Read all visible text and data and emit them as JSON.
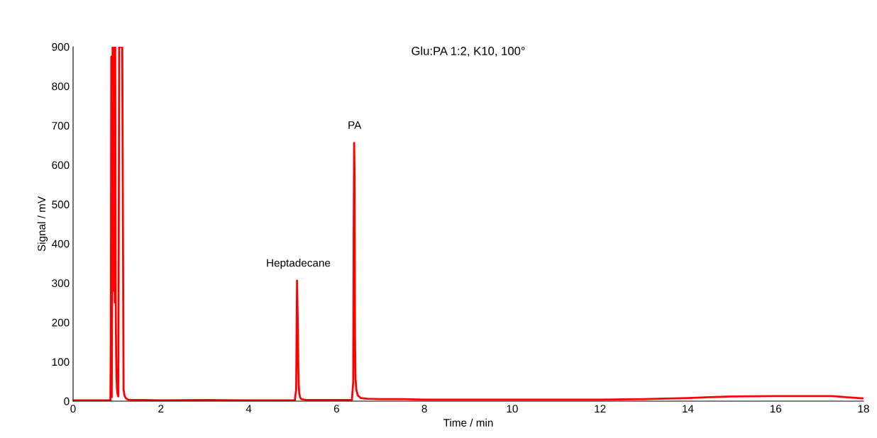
{
  "chart_data": {
    "type": "line",
    "title": "Glu:PA 1:2, K10, 100°",
    "xlabel": "Time / min",
    "ylabel": "Signal / mV",
    "x": [
      0,
      0.5,
      0.85,
      0.86,
      0.87,
      0.88,
      0.89,
      0.9,
      0.91,
      0.92,
      0.93,
      0.94,
      0.95,
      0.96,
      0.97,
      0.98,
      0.99,
      1.0,
      1.01,
      1.02,
      1.03,
      1.05,
      1.08,
      1.12,
      1.15,
      1.17,
      1.18,
      1.19,
      1.2,
      1.22,
      1.25,
      1.35,
      1.6,
      2.0,
      3.0,
      4.0,
      5.05,
      5.08,
      5.1,
      5.12,
      5.13,
      5.14,
      5.15,
      5.17,
      5.2,
      5.3,
      5.5,
      6.0,
      6.35,
      6.38,
      6.39,
      6.4,
      6.41,
      6.42,
      6.43,
      6.45,
      6.48,
      6.55,
      6.7,
      7.0,
      7.5,
      8.0,
      9.0,
      10.0,
      11.0,
      12.0,
      13.0,
      14.0,
      14.5,
      15.0,
      16.0,
      17.0,
      17.3,
      17.6,
      18.0
    ],
    "series": [
      {
        "color": "#ff0000",
        "values": [
          2,
          2,
          2,
          150,
          875,
          10,
          330,
          900,
          540,
          900,
          280,
          900,
          250,
          900,
          260,
          120,
          60,
          30,
          20,
          15,
          12,
          900,
          900,
          900,
          30,
          15,
          12,
          10,
          8,
          6,
          4,
          3,
          3,
          2,
          3,
          2,
          2,
          30,
          306,
          180,
          80,
          40,
          20,
          10,
          5,
          3,
          3,
          3,
          3,
          50,
          425,
          656,
          580,
          170,
          60,
          30,
          15,
          8,
          6,
          5,
          5,
          4,
          4,
          4,
          4,
          4,
          5,
          8,
          10,
          12,
          13,
          13,
          13,
          10,
          7
        ]
      }
    ],
    "annotations": [
      {
        "text": "Heptadecane",
        "x": 5.13,
        "y": 306
      },
      {
        "text": "PA",
        "x": 6.41,
        "y": 656
      }
    ],
    "xlim": [
      0,
      18
    ],
    "ylim": [
      0,
      900
    ],
    "xticks": [
      0,
      2,
      4,
      6,
      8,
      10,
      12,
      14,
      16,
      18
    ],
    "yticks": [
      0,
      100,
      200,
      300,
      400,
      500,
      600,
      700,
      800,
      900
    ],
    "grid": false,
    "legend": false,
    "marker": "none",
    "line_style": "solid"
  }
}
